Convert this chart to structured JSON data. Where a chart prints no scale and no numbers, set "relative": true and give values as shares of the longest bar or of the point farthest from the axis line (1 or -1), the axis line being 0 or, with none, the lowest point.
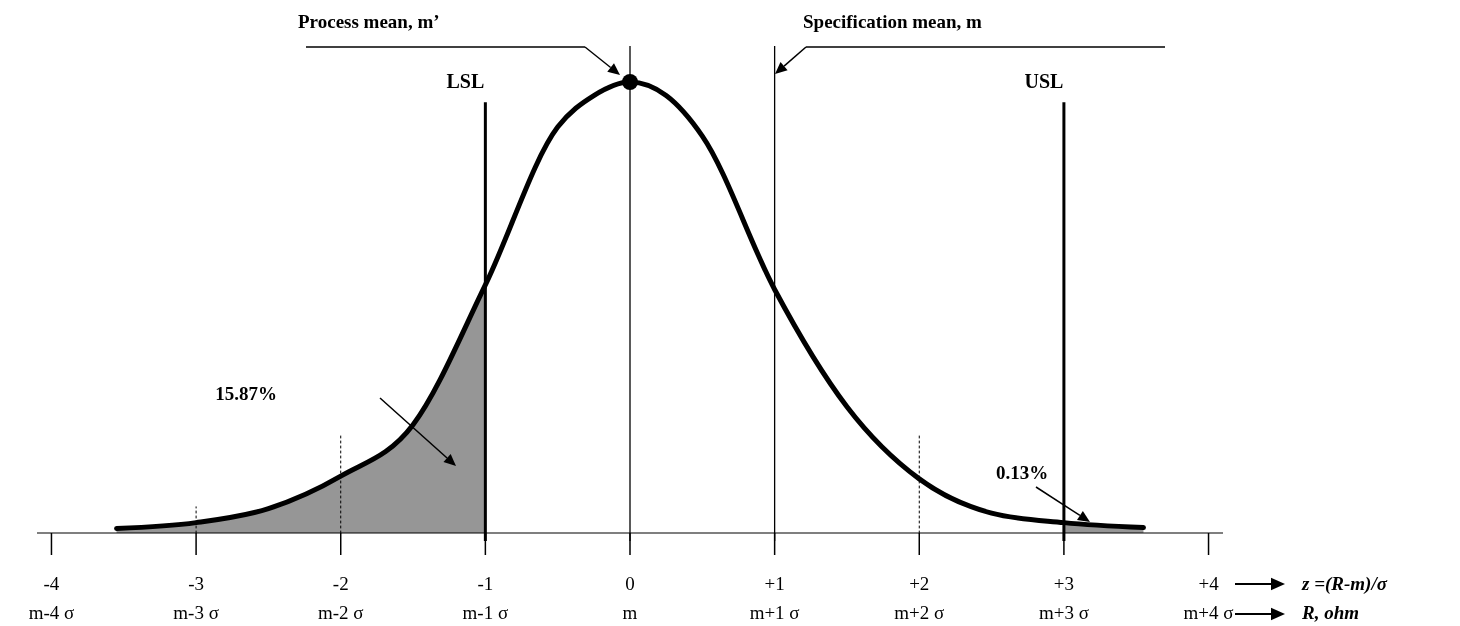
{
  "chart_data": {
    "type": "line",
    "relative": true,
    "xlim": [
      -4.1,
      4.1
    ],
    "xticks": [
      {
        "value": -4,
        "label": "-4"
      },
      {
        "value": -3,
        "label": "-3"
      },
      {
        "value": -2,
        "label": "-2"
      },
      {
        "value": -1,
        "label": "-1"
      },
      {
        "value": 0,
        "label": "0"
      },
      {
        "value": 1,
        "label": "+1"
      },
      {
        "value": 2,
        "label": "+2"
      },
      {
        "value": 3,
        "label": "+3"
      },
      {
        "value": 4,
        "label": "+4"
      }
    ],
    "xlabel": "z =(R-m)/σ",
    "x2label": "R, ohm",
    "series": [
      {
        "type": "area",
        "color": "#969696",
        "x": [
          -3.55,
          -3,
          -2.5,
          -2,
          -1.5,
          -1
        ],
        "values": [
          0.01,
          0.023,
          0.054,
          0.126,
          0.24,
          0.55
        ]
      },
      {
        "type": "area",
        "color": "#969696",
        "x": [
          3,
          3.55
        ],
        "values": [
          0.023,
          0.012
        ]
      },
      {
        "type": "line",
        "color": "#000000",
        "line_style": "dotted",
        "x": [
          -3,
          -3
        ],
        "values": [
          0,
          0.058
        ]
      },
      {
        "type": "line",
        "color": "#000000",
        "line_style": "dotted",
        "x": [
          -2,
          -2
        ],
        "values": [
          0,
          0.22
        ]
      },
      {
        "type": "line",
        "color": "#000000",
        "line_style": "dotted",
        "x": [
          2,
          2
        ],
        "values": [
          0,
          0.22
        ]
      },
      {
        "color": "#000000",
        "line_style": "solid",
        "x": [
          -3.55,
          -3,
          -2.5,
          -2,
          -1.5,
          -1,
          -0.5,
          -0.25,
          0,
          0.25,
          0.5,
          1,
          1.5,
          2,
          2.5,
          3,
          3.55
        ],
        "values": [
          0.01,
          0.023,
          0.054,
          0.126,
          0.24,
          0.55,
          0.9,
          0.97,
          1,
          0.97,
          0.88,
          0.54,
          0.28,
          0.12,
          0.044,
          0.023,
          0.012
        ]
      },
      {
        "type": "scatter",
        "color": "#000000",
        "marker": "circle",
        "x": [
          0
        ],
        "values": [
          1
        ]
      }
    ],
    "ref_lines": [
      {
        "axis": "x",
        "value": -1,
        "label": "LSL",
        "color": "#000000"
      },
      {
        "axis": "x",
        "value": 3,
        "label": "USL",
        "color": "#000000"
      },
      {
        "axis": "x",
        "value": 0,
        "color": "#000000"
      },
      {
        "axis": "x",
        "value": 1,
        "color": "#000000"
      }
    ],
    "annotations": [
      "Process mean, m’",
      "Specification mean, m",
      "15.87%",
      "0.13%",
      "m-4 σ",
      "m-3 σ",
      "m-2 σ",
      "m-1 σ",
      "m",
      "m+1 σ",
      "m+2 σ",
      "m+3 σ",
      "m+4 σ"
    ]
  }
}
